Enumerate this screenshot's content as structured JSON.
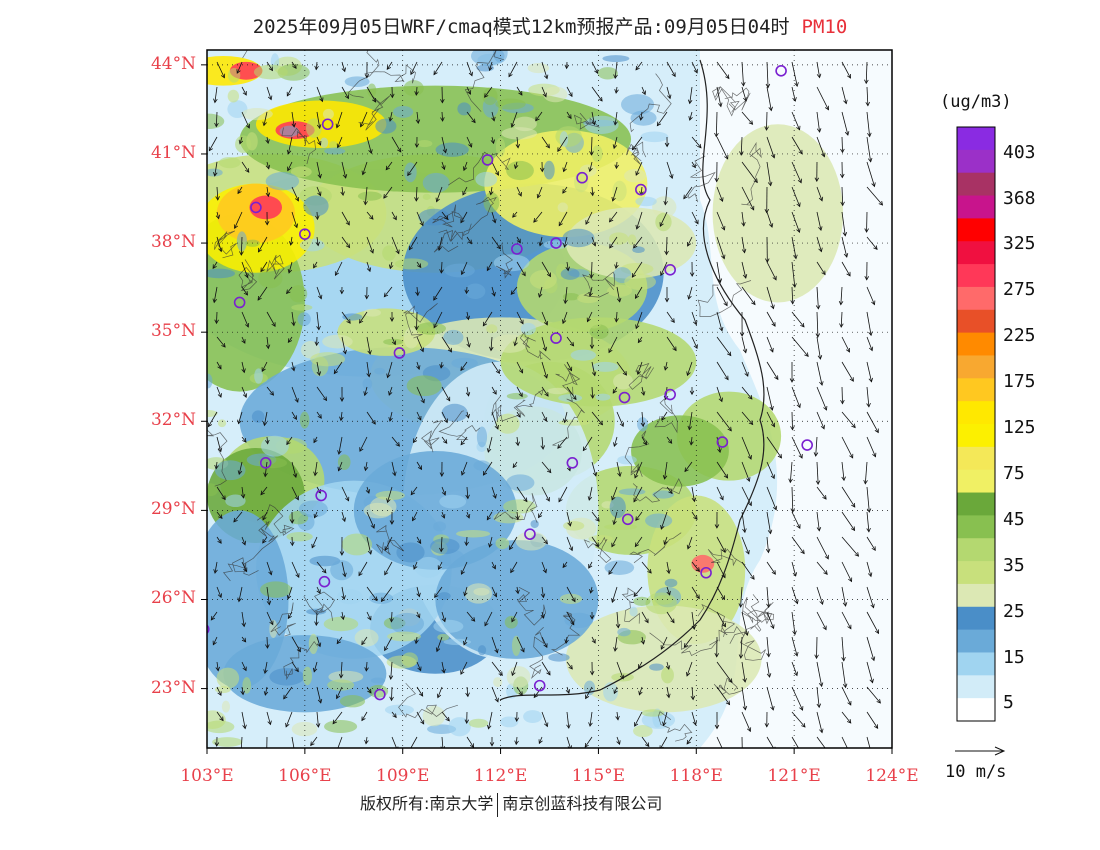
{
  "title": {
    "main": "2025年09月05日WRF/cmaq模式12km预报产品:09月05日04时",
    "variable": "PM10"
  },
  "map": {
    "lat_labels": [
      "44°N",
      "41°N",
      "38°N",
      "35°N",
      "32°N",
      "29°N",
      "26°N",
      "23°N"
    ],
    "lon_labels": [
      "103°E",
      "106°E",
      "109°E",
      "112°E",
      "115°E",
      "118°E",
      "121°E",
      "124°E"
    ],
    "lat_values": [
      44,
      41,
      38,
      35,
      32,
      29,
      26,
      23
    ],
    "lon_values": [
      103,
      106,
      109,
      112,
      115,
      118,
      121,
      124
    ],
    "extent": {
      "lon_min": 103,
      "lon_max": 124,
      "lat_min": 21,
      "lat_max": 44.5
    },
    "stations_icon": "circle-marker-icon",
    "station_color": "#7a20d0"
  },
  "legend": {
    "unit": "(ug/m3)",
    "labels": [
      "403",
      "368",
      "325",
      "275",
      "225",
      "175",
      "125",
      "75",
      "45",
      "35",
      "25",
      "15",
      "5"
    ],
    "colors": [
      "#8a2be2",
      "#9b30c8",
      "#a83264",
      "#c8148c",
      "#ff0000",
      "#f01040",
      "#ff3858",
      "#ff6a6a",
      "#e85028",
      "#ff8a00",
      "#f8a830",
      "#ffc820",
      "#ffe800",
      "#fcf000",
      "#f4e858",
      "#f0f064",
      "#6aa83a",
      "#88c050",
      "#b4d870",
      "#c8e07c",
      "#dce8b4",
      "#4a8ec8",
      "#6aaad8",
      "#a0d4f0",
      "#d2ecf8",
      "#ffffff"
    ],
    "vector_ref_label": "10 m/s"
  },
  "footer": {
    "rights": "版权所有:南京大学",
    "company": "南京创蓝科技有限公司"
  }
}
